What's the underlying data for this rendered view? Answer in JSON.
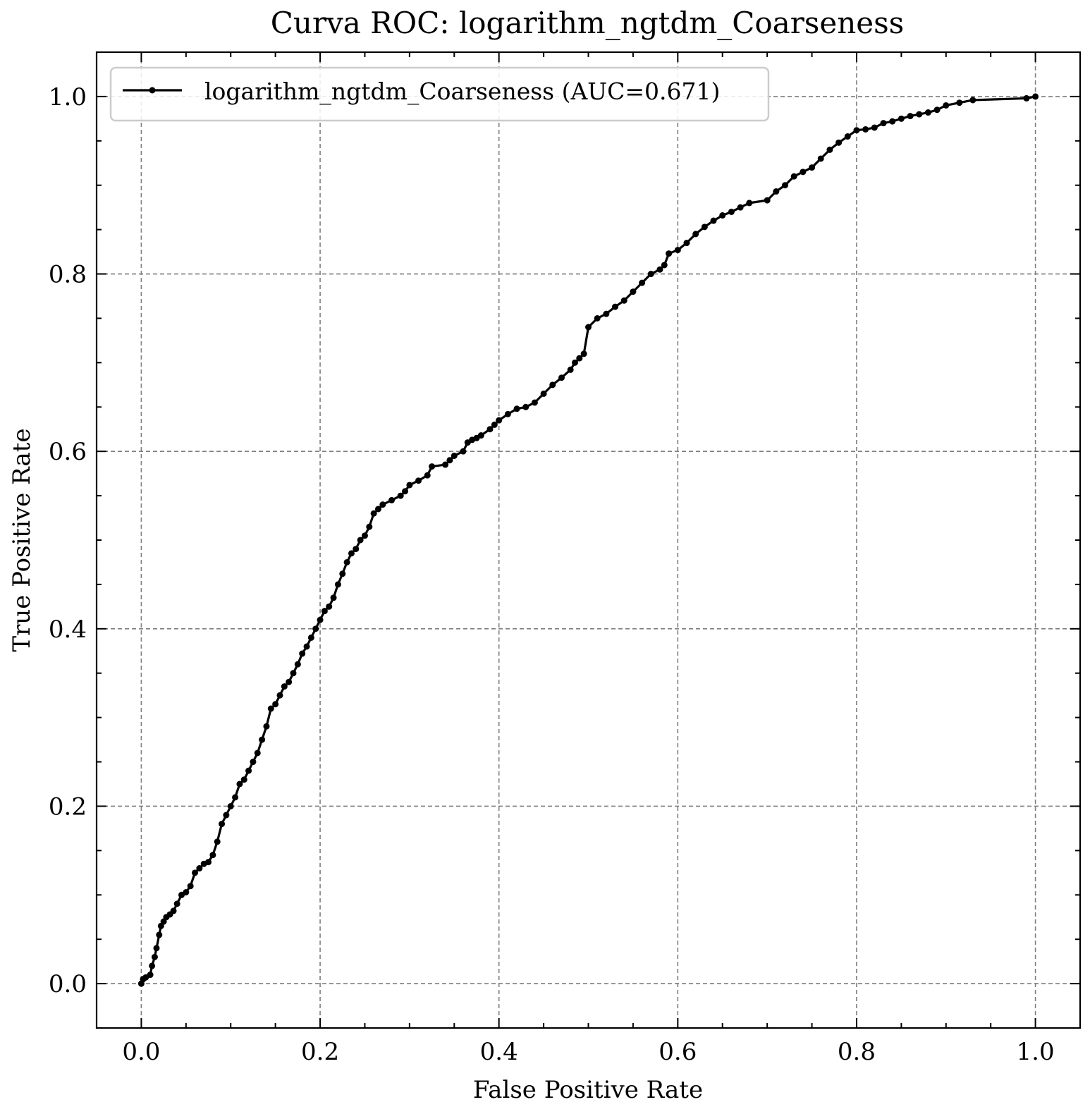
{
  "chart_data": {
    "type": "line",
    "title": "Curva ROC: logarithm_ngtdm_Coarseness",
    "xlabel": "False Positive Rate",
    "ylabel": "True Positive Rate",
    "xlim": [
      -0.05,
      1.05
    ],
    "ylim": [
      -0.05,
      1.05
    ],
    "xticks": [
      0.0,
      0.2,
      0.4,
      0.6,
      0.8,
      1.0
    ],
    "xtick_labels": [
      "0.0",
      "0.2",
      "0.4",
      "0.6",
      "0.8",
      "1.0"
    ],
    "yticks": [
      0.0,
      0.2,
      0.4,
      0.6,
      0.8,
      1.0
    ],
    "ytick_labels": [
      "0.0",
      "0.2",
      "0.4",
      "0.6",
      "0.8",
      "1.0"
    ],
    "grid": true,
    "legend_position": "top-left",
    "series": [
      {
        "name": "logarithm_ngtdm_Coarseness (AUC=0.671)",
        "color": "#000000",
        "marker": "dot",
        "x": [
          0.0,
          0.002,
          0.005,
          0.01,
          0.012,
          0.015,
          0.017,
          0.02,
          0.022,
          0.025,
          0.028,
          0.032,
          0.036,
          0.04,
          0.045,
          0.05,
          0.055,
          0.06,
          0.065,
          0.07,
          0.075,
          0.08,
          0.085,
          0.09,
          0.095,
          0.1,
          0.105,
          0.11,
          0.115,
          0.12,
          0.125,
          0.13,
          0.135,
          0.14,
          0.145,
          0.15,
          0.155,
          0.16,
          0.165,
          0.17,
          0.175,
          0.18,
          0.185,
          0.19,
          0.195,
          0.2,
          0.205,
          0.21,
          0.215,
          0.22,
          0.225,
          0.23,
          0.235,
          0.24,
          0.245,
          0.25,
          0.255,
          0.26,
          0.265,
          0.27,
          0.28,
          0.29,
          0.295,
          0.3,
          0.31,
          0.32,
          0.325,
          0.34,
          0.345,
          0.35,
          0.36,
          0.365,
          0.37,
          0.375,
          0.38,
          0.39,
          0.395,
          0.4,
          0.41,
          0.42,
          0.43,
          0.44,
          0.45,
          0.46,
          0.47,
          0.48,
          0.485,
          0.49,
          0.495,
          0.5,
          0.51,
          0.52,
          0.53,
          0.54,
          0.55,
          0.56,
          0.57,
          0.58,
          0.585,
          0.59,
          0.6,
          0.61,
          0.62,
          0.63,
          0.64,
          0.65,
          0.66,
          0.67,
          0.68,
          0.7,
          0.71,
          0.72,
          0.73,
          0.74,
          0.75,
          0.76,
          0.77,
          0.78,
          0.79,
          0.8,
          0.81,
          0.82,
          0.83,
          0.84,
          0.85,
          0.86,
          0.87,
          0.88,
          0.89,
          0.9,
          0.915,
          0.93,
          0.99,
          1.0
        ],
        "y": [
          0.0,
          0.005,
          0.007,
          0.01,
          0.02,
          0.03,
          0.04,
          0.055,
          0.065,
          0.07,
          0.075,
          0.078,
          0.082,
          0.09,
          0.1,
          0.103,
          0.11,
          0.125,
          0.13,
          0.135,
          0.137,
          0.145,
          0.16,
          0.18,
          0.19,
          0.2,
          0.21,
          0.225,
          0.23,
          0.24,
          0.25,
          0.26,
          0.275,
          0.29,
          0.31,
          0.315,
          0.325,
          0.335,
          0.34,
          0.35,
          0.36,
          0.372,
          0.38,
          0.39,
          0.4,
          0.41,
          0.42,
          0.425,
          0.435,
          0.45,
          0.462,
          0.475,
          0.485,
          0.49,
          0.5,
          0.505,
          0.515,
          0.53,
          0.535,
          0.54,
          0.545,
          0.55,
          0.555,
          0.562,
          0.567,
          0.573,
          0.583,
          0.585,
          0.59,
          0.595,
          0.6,
          0.61,
          0.613,
          0.615,
          0.618,
          0.625,
          0.63,
          0.635,
          0.642,
          0.648,
          0.65,
          0.655,
          0.665,
          0.675,
          0.683,
          0.692,
          0.7,
          0.705,
          0.71,
          0.74,
          0.75,
          0.755,
          0.763,
          0.77,
          0.78,
          0.79,
          0.8,
          0.805,
          0.81,
          0.823,
          0.827,
          0.835,
          0.845,
          0.853,
          0.86,
          0.866,
          0.87,
          0.875,
          0.88,
          0.883,
          0.893,
          0.9,
          0.91,
          0.915,
          0.92,
          0.93,
          0.94,
          0.948,
          0.955,
          0.962,
          0.963,
          0.965,
          0.97,
          0.972,
          0.975,
          0.978,
          0.98,
          0.982,
          0.985,
          0.99,
          0.993,
          0.996,
          0.998,
          1.0
        ]
      }
    ]
  }
}
